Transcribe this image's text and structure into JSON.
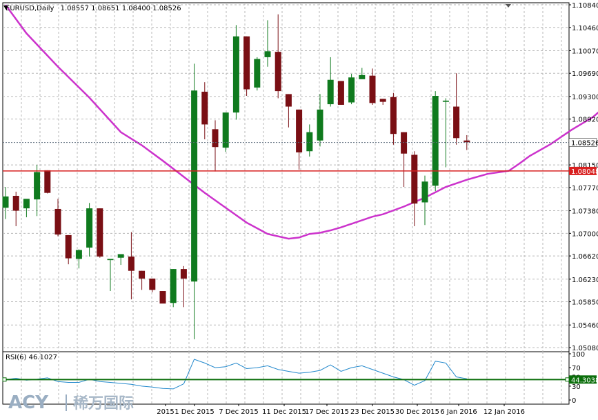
{
  "header": {
    "symbol": "EURUSD,Daily",
    "ohlc": "1.08557 1.08651 1.08400 1.08526"
  },
  "rsi_label": "RSI(6) 46.1027",
  "watermark": {
    "brand": "ACY",
    "cn": "稀万国际"
  },
  "colors": {
    "bull": "#0f7a1e",
    "bear": "#7a0f14",
    "ma": "#cc33cc",
    "rsi": "#2288cc",
    "support": "#d82020",
    "current": "#5a6a7a",
    "rsi_level": "#0b6e0b",
    "grid": "#b8b8b8"
  },
  "chart_data": [
    {
      "type": "candlestick",
      "title": "EURUSD,Daily",
      "ylim": [
        1.0508,
        1.1084
      ],
      "y_ticks": [
        "1.10840",
        "1.10460",
        "1.10070",
        "1.09690",
        "1.09300",
        "1.08920",
        "1.08526",
        "1.08150",
        "1.08048",
        "1.07770",
        "1.07380",
        "1.07000",
        "1.06620",
        "1.06230",
        "1.05850",
        "1.05460",
        "1.05080"
      ],
      "x_tick_labels": [
        "2015",
        "1 Dec 2015",
        "7 Dec 2015",
        "11 Dec 2015",
        "17 Dec 2015",
        "23 Dec 2015",
        "30 Dec 2015",
        "6 Jan 2016",
        "12 Jan 2016"
      ],
      "current_price": "1.08526",
      "support_level": "1.08048",
      "support_price": 1.08048,
      "moving_average": [
        {
          "i": 0,
          "v": 1.1084
        },
        {
          "i": 2,
          "v": 1.1036
        },
        {
          "i": 5,
          "v": 1.098
        },
        {
          "i": 8,
          "v": 1.0928
        },
        {
          "i": 11,
          "v": 1.087
        },
        {
          "i": 13,
          "v": 1.0848
        },
        {
          "i": 15,
          "v": 1.0822
        },
        {
          "i": 17,
          "v": 1.0795
        },
        {
          "i": 19,
          "v": 1.0768
        },
        {
          "i": 21,
          "v": 1.0743
        },
        {
          "i": 23,
          "v": 1.0718
        },
        {
          "i": 25,
          "v": 1.0699
        },
        {
          "i": 27,
          "v": 1.0691
        },
        {
          "i": 28,
          "v": 1.0693
        },
        {
          "i": 29,
          "v": 1.0699
        },
        {
          "i": 30,
          "v": 1.0701
        },
        {
          "i": 31,
          "v": 1.0705
        },
        {
          "i": 32,
          "v": 1.071
        },
        {
          "i": 33,
          "v": 1.0716
        },
        {
          "i": 35,
          "v": 1.0728
        },
        {
          "i": 36,
          "v": 1.0732
        },
        {
          "i": 38,
          "v": 1.0745
        },
        {
          "i": 40,
          "v": 1.076
        },
        {
          "i": 42,
          "v": 1.0778
        },
        {
          "i": 44,
          "v": 1.079
        },
        {
          "i": 46,
          "v": 1.08
        },
        {
          "i": 48,
          "v": 1.0805
        },
        {
          "i": 49,
          "v": 1.0817
        },
        {
          "i": 50,
          "v": 1.083
        },
        {
          "i": 52,
          "v": 1.085
        },
        {
          "i": 54,
          "v": 1.0874
        },
        {
          "i": 56,
          "v": 1.0895
        },
        {
          "i": 57,
          "v": 1.091
        },
        {
          "i": 58,
          "v": 1.0913
        },
        {
          "i": 59,
          "v": 1.0912
        },
        {
          "i": 60,
          "v": 1.0908
        },
        {
          "i": 62,
          "v": 1.0905
        },
        {
          "i": 63,
          "v": 1.0903
        },
        {
          "i": 64,
          "v": 1.0903
        },
        {
          "i": 66,
          "v": 1.0901
        },
        {
          "i": 68,
          "v": 1.0896
        },
        {
          "i": 69,
          "v": 1.0892
        }
      ],
      "candles": [
        {
          "i": 0,
          "o": 1.0743,
          "h": 1.0778,
          "l": 1.0724,
          "c": 1.0762
        },
        {
          "i": 1,
          "o": 1.0763,
          "h": 1.077,
          "l": 1.0712,
          "c": 1.0738
        },
        {
          "i": 2,
          "o": 1.0742,
          "h": 1.0757,
          "l": 1.0727,
          "c": 1.0758
        },
        {
          "i": 3,
          "o": 1.0757,
          "h": 1.0815,
          "l": 1.0729,
          "c": 1.0803
        },
        {
          "i": 4,
          "o": 1.0806,
          "h": 1.0806,
          "l": 1.0767,
          "c": 1.0768
        },
        {
          "i": 5,
          "o": 1.0741,
          "h": 1.0758,
          "l": 1.0695,
          "c": 1.0698
        },
        {
          "i": 6,
          "o": 1.0697,
          "h": 1.0697,
          "l": 1.0648,
          "c": 1.0658
        },
        {
          "i": 7,
          "o": 1.0657,
          "h": 1.0673,
          "l": 1.0641,
          "c": 1.0672
        },
        {
          "i": 8,
          "o": 1.0676,
          "h": 1.0751,
          "l": 1.0661,
          "c": 1.0742
        },
        {
          "i": 9,
          "o": 1.0742,
          "h": 1.0742,
          "l": 1.0659,
          "c": 1.0661
        },
        {
          "i": 10,
          "o": 1.0655,
          "h": 1.0655,
          "l": 1.0603,
          "c": 1.0657
        },
        {
          "i": 11,
          "o": 1.0659,
          "h": 1.0665,
          "l": 1.0647,
          "c": 1.0665
        },
        {
          "i": 12,
          "o": 1.0661,
          "h": 1.0702,
          "l": 1.0589,
          "c": 1.0637
        },
        {
          "i": 13,
          "o": 1.0637,
          "h": 1.0637,
          "l": 1.0605,
          "c": 1.0624
        },
        {
          "i": 14,
          "o": 1.0624,
          "h": 1.0624,
          "l": 1.0601,
          "c": 1.0605
        },
        {
          "i": 15,
          "o": 1.0603,
          "h": 1.0603,
          "l": 1.0583,
          "c": 1.0582
        },
        {
          "i": 16,
          "o": 1.0583,
          "h": 1.064,
          "l": 1.0576,
          "c": 1.064
        },
        {
          "i": 17,
          "o": 1.064,
          "h": 1.0645,
          "l": 1.0576,
          "c": 1.0624
        },
        {
          "i": 18,
          "o": 1.0619,
          "h": 1.0985,
          "l": 1.0522,
          "c": 1.094
        },
        {
          "i": 19,
          "o": 1.0938,
          "h": 1.0954,
          "l": 1.0858,
          "c": 1.0883
        },
        {
          "i": 20,
          "o": 1.0875,
          "h": 1.089,
          "l": 1.0804,
          "c": 1.0845
        },
        {
          "i": 21,
          "o": 1.0844,
          "h": 1.0902,
          "l": 1.0837,
          "c": 1.0903
        },
        {
          "i": 22,
          "o": 1.0903,
          "h": 1.105,
          "l": 1.0891,
          "c": 1.1031
        },
        {
          "i": 23,
          "o": 1.1031,
          "h": 1.1031,
          "l": 1.0931,
          "c": 1.0942
        },
        {
          "i": 24,
          "o": 1.0945,
          "h": 1.0996,
          "l": 1.094,
          "c": 1.0993
        },
        {
          "i": 25,
          "o": 1.0996,
          "h": 1.1058,
          "l": 1.098,
          "c": 1.1006
        },
        {
          "i": 26,
          "o": 1.1005,
          "h": 1.1068,
          "l": 1.0927,
          "c": 1.0939
        },
        {
          "i": 27,
          "o": 1.0934,
          "h": 1.0934,
          "l": 1.0878,
          "c": 1.0913
        },
        {
          "i": 28,
          "o": 1.0908,
          "h": 1.0908,
          "l": 1.0807,
          "c": 1.0836
        },
        {
          "i": 29,
          "o": 1.0838,
          "h": 1.0883,
          "l": 1.0829,
          "c": 1.087
        },
        {
          "i": 30,
          "o": 1.0856,
          "h": 1.0934,
          "l": 1.0846,
          "c": 1.0908
        },
        {
          "i": 31,
          "o": 1.0917,
          "h": 1.0996,
          "l": 1.0913,
          "c": 1.0958
        },
        {
          "i": 32,
          "o": 1.0956,
          "h": 1.0956,
          "l": 1.0916,
          "c": 1.0916
        },
        {
          "i": 33,
          "o": 1.092,
          "h": 1.0968,
          "l": 1.0917,
          "c": 1.0962
        },
        {
          "i": 34,
          "o": 1.0959,
          "h": 1.0978,
          "l": 1.0961,
          "c": 1.0966
        },
        {
          "i": 35,
          "o": 1.0965,
          "h": 1.0977,
          "l": 1.0916,
          "c": 1.0919
        },
        {
          "i": 36,
          "o": 1.0926,
          "h": 1.0926,
          "l": 1.0916,
          "c": 1.0921
        },
        {
          "i": 37,
          "o": 1.0929,
          "h": 1.0936,
          "l": 1.0849,
          "c": 1.0867
        },
        {
          "i": 38,
          "o": 1.087,
          "h": 1.087,
          "l": 1.0778,
          "c": 1.0834
        },
        {
          "i": 39,
          "o": 1.0832,
          "h": 1.0838,
          "l": 1.0712,
          "c": 1.075
        },
        {
          "i": 40,
          "o": 1.0752,
          "h": 1.0797,
          "l": 1.0714,
          "c": 1.0787
        },
        {
          "i": 41,
          "o": 1.078,
          "h": 1.0939,
          "l": 1.0771,
          "c": 1.0931
        },
        {
          "i": 42,
          "o": 1.0921,
          "h": 1.0927,
          "l": 1.0811,
          "c": 1.0923
        },
        {
          "i": 43,
          "o": 1.0913,
          "h": 1.0969,
          "l": 1.0849,
          "c": 1.086
        },
        {
          "i": 44,
          "o": 1.0856,
          "h": 1.0865,
          "l": 1.084,
          "c": 1.0853
        }
      ]
    },
    {
      "type": "line",
      "title": "RSI(6) 46.1027",
      "ylim": [
        0,
        100
      ],
      "y_ticks": [
        "100",
        "70",
        "50",
        "30",
        "0"
      ],
      "level": "44.3038",
      "level_value": 44.3038,
      "values": [
        44,
        47,
        43,
        45,
        48,
        40,
        38,
        38,
        45,
        40,
        38,
        36,
        34,
        30,
        28,
        25,
        24,
        35,
        88,
        80,
        70,
        72,
        80,
        68,
        70,
        74,
        66,
        62,
        58,
        60,
        64,
        76,
        62,
        70,
        74,
        66,
        58,
        50,
        44,
        32,
        42,
        84,
        80,
        50,
        46
      ]
    }
  ]
}
